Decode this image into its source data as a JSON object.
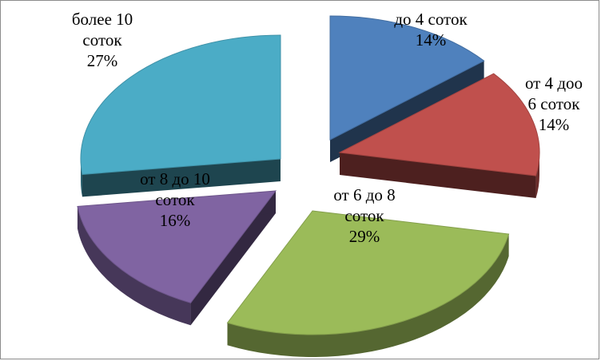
{
  "chart_data": {
    "type": "pie",
    "title": "",
    "slices": [
      {
        "label_lines": [
          "до 4 соток",
          "14%"
        ],
        "value": 14,
        "color": "#4F81BD"
      },
      {
        "label_lines": [
          "от 4 доо",
          "6 соток",
          "14%"
        ],
        "value": 14,
        "color": "#C0504D"
      },
      {
        "label_lines": [
          "от 6 до 8",
          "соток",
          "29%"
        ],
        "value": 29,
        "color": "#9BBB59"
      },
      {
        "label_lines": [
          "от 8 до 10",
          "соток",
          "16%"
        ],
        "value": 16,
        "color": "#8064A2"
      },
      {
        "label_lines": [
          "более 10",
          "соток",
          "27%"
        ],
        "value": 27,
        "color": "#4BACC6"
      }
    ],
    "style": "3d-exploded",
    "legend": "none"
  }
}
